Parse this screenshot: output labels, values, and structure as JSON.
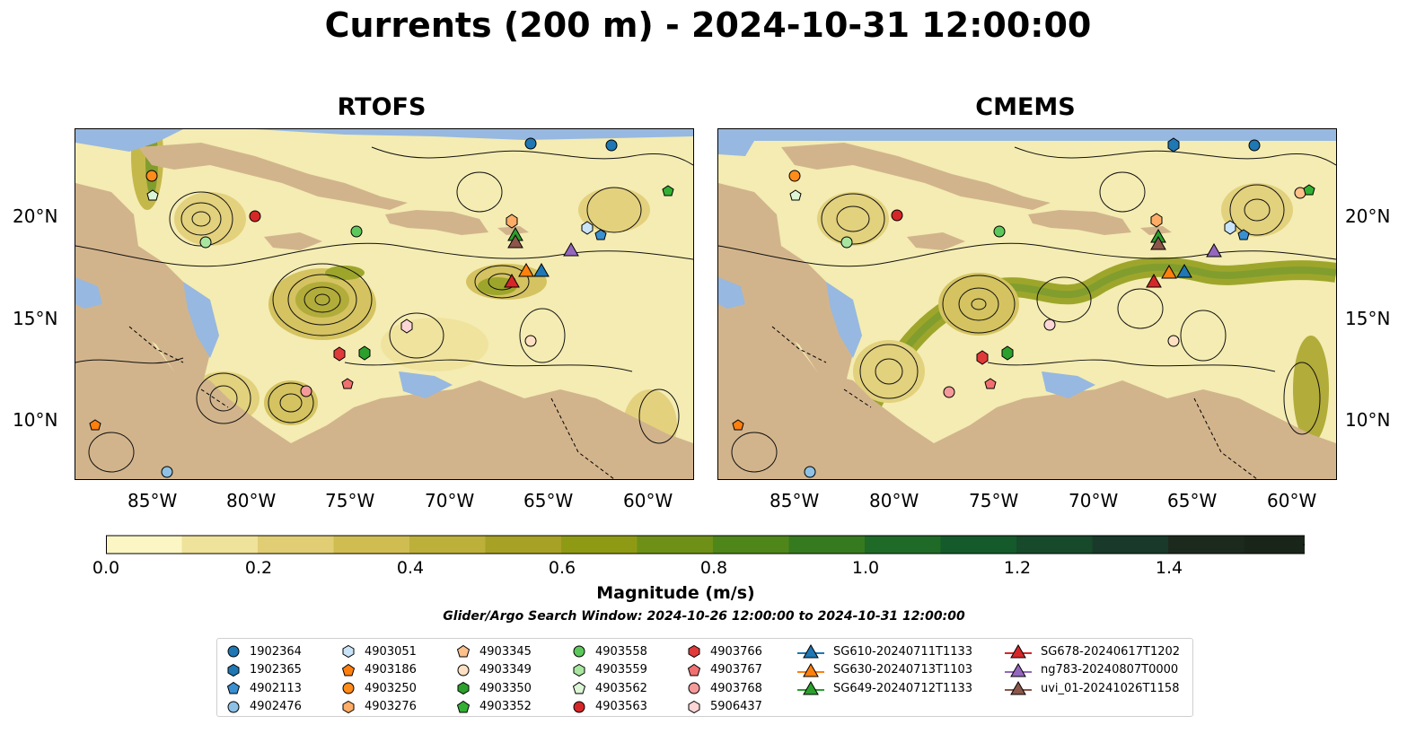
{
  "title": "Currents (200 m) - 2024-10-31 12:00:00",
  "panels": [
    {
      "title": "RTOFS"
    },
    {
      "title": "CMEMS"
    }
  ],
  "lon_ticks": [
    "85°W",
    "80°W",
    "75°W",
    "70°W",
    "65°W",
    "60°W"
  ],
  "lat_ticks": [
    "20°N",
    "15°N",
    "10°N"
  ],
  "colorbar": {
    "label": "Magnitude (m/s)",
    "ticks": [
      "0.0",
      "0.2",
      "0.4",
      "0.6",
      "0.8",
      "1.0",
      "1.2",
      "1.4"
    ],
    "colors": [
      "#fbf6c4",
      "#efe29a",
      "#e0cd74",
      "#cfbd52",
      "#bcaf3a",
      "#a7a126",
      "#8f9a14",
      "#6e9016",
      "#4f861a",
      "#357a1f",
      "#1f6a27",
      "#145a2a",
      "#164a2a",
      "#19392a",
      "#1c2a1e",
      "#1a2519"
    ]
  },
  "search_window": "Glider/Argo Search Window: 2024-10-26 12:00:00 to 2024-10-31 12:00:00",
  "legend": {
    "columns": [
      [
        {
          "label": "1902364",
          "shape": "circle",
          "color": "#1f77b4"
        },
        {
          "label": "1902365",
          "shape": "hexagon",
          "color": "#1f77b4"
        },
        {
          "label": "4902113",
          "shape": "pentagon",
          "color": "#3a8fd0"
        },
        {
          "label": "4902476",
          "shape": "circle",
          "color": "#8ec1e6"
        }
      ],
      [
        {
          "label": "4903051",
          "shape": "hexagon",
          "color": "#c9e4f8"
        },
        {
          "label": "4903186",
          "shape": "pentagon",
          "color": "#ff7f0e"
        },
        {
          "label": "4903250",
          "shape": "circle",
          "color": "#ff8c1a"
        },
        {
          "label": "4903276",
          "shape": "hexagon",
          "color": "#ffad66"
        }
      ],
      [
        {
          "label": "4903345",
          "shape": "pentagon",
          "color": "#ffc08a"
        },
        {
          "label": "4903349",
          "shape": "circle",
          "color": "#ffe0c2"
        },
        {
          "label": "4903350",
          "shape": "hexagon",
          "color": "#2ca02c"
        },
        {
          "label": "4903352",
          "shape": "pentagon",
          "color": "#33b033"
        }
      ],
      [
        {
          "label": "4903558",
          "shape": "circle",
          "color": "#5cc85c"
        },
        {
          "label": "4903559",
          "shape": "hexagon",
          "color": "#a8e6a0"
        },
        {
          "label": "4903562",
          "shape": "pentagon",
          "color": "#dcf5d6"
        },
        {
          "label": "4903563",
          "shape": "circle",
          "color": "#d62728"
        }
      ],
      [
        {
          "label": "4903766",
          "shape": "hexagon",
          "color": "#e0393a"
        },
        {
          "label": "4903767",
          "shape": "pentagon",
          "color": "#f07070"
        },
        {
          "label": "4903768",
          "shape": "circle",
          "color": "#f59a9a"
        },
        {
          "label": "5906437",
          "shape": "hexagon",
          "color": "#fcd5d5"
        }
      ],
      [
        {
          "label": "SG610-20240711T1133",
          "shape": "triangle",
          "color": "#1f77b4"
        },
        {
          "label": "SG630-20240713T1103",
          "shape": "triangle",
          "color": "#ff7f0e"
        },
        {
          "label": "SG649-20240712T1133",
          "shape": "triangle",
          "color": "#2ca02c"
        }
      ],
      [
        {
          "label": "SG678-20240617T1202",
          "shape": "triangle",
          "color": "#d62728"
        },
        {
          "label": "ng783-20240807T0000",
          "shape": "triangle",
          "color": "#9467bd"
        },
        {
          "label": "uvi_01-20241026T1158",
          "shape": "triangle",
          "color": "#8c564b"
        }
      ]
    ]
  },
  "map_colors": {
    "land": "#d2b48c",
    "shelf": "#97b8e0",
    "streamline": "#111111",
    "flow_fill": "#f4ecb2"
  }
}
